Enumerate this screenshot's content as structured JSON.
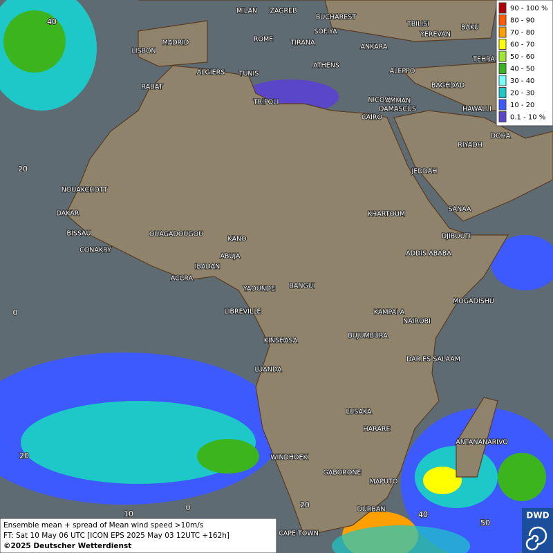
{
  "legend": [
    {
      "label": "90 - 100 %",
      "color": "#b00000"
    },
    {
      "label": "80 - 90",
      "color": "#ff5a00"
    },
    {
      "label": "70 - 80",
      "color": "#ffa000"
    },
    {
      "label": "60 - 70",
      "color": "#ffff00"
    },
    {
      "label": "50 - 60",
      "color": "#a0e632"
    },
    {
      "label": "40 - 50",
      "color": "#3cb41e"
    },
    {
      "label": "30 - 40",
      "color": "#78ffff"
    },
    {
      "label": "20 - 30",
      "color": "#1ec8c8"
    },
    {
      "label": "10 - 20",
      "color": "#3c5aff"
    },
    {
      "label": "0.1 - 10 %",
      "color": "#5a46c8"
    }
  ],
  "cities": [
    "MILAN",
    "ZAGREB",
    "BUCHAREST",
    "SOFIYA",
    "MADRID",
    "ROME",
    "TIRANA",
    "ANKARA",
    "TBILISI",
    "YEREVAN",
    "BAKU",
    "LISBON",
    "TEHRA",
    "ALGIERS",
    "TUNIS",
    "ATHENS",
    "ALEPPO",
    "RABAT",
    "NICOSIA",
    "BAGHDAD",
    "AMMAN",
    "DAMASCUS",
    "TRIPOLI",
    "HAWALLI",
    "CAIRO",
    "DOHA",
    "RIYADH",
    "JEDDAH",
    "NOUAKCHOTT",
    "SANAA",
    "KHARTOUM",
    "DAKAR",
    "BISSAU",
    "DJIBOUTI",
    "OUAGADOUGOU",
    "KANO",
    "CONAKRY",
    "ADDIS ABABA",
    "ABUJA",
    "IBADAN",
    "ACCRA",
    "YAOUNDE",
    "BANGUI",
    "MOGADISHU",
    "LIBREVILLE",
    "KAMPALA",
    "NAIROBI",
    "KINSHASA",
    "BUJUMBURA",
    "DAR ES SALAAM",
    "LUANDA",
    "LUSAKA",
    "HARARE",
    "ANTANANARIVO",
    "WINDHOEK",
    "GABORONE",
    "MAPUTO",
    "DURBAN",
    "CAPE TOWN"
  ],
  "grid_labels": [
    "40",
    "20",
    "0",
    "20",
    "10",
    "0",
    "20",
    "40",
    "50"
  ],
  "footer": {
    "line1": "Ensemble mean + spread of Mean wind speed >10m/s",
    "line2": "FT: Sat 10 May 06 UTC [ICON EPS 2025 May 03 12UTC +162h]",
    "line3": "©2025 Deutscher Wetterdienst"
  },
  "logo": "DWD"
}
